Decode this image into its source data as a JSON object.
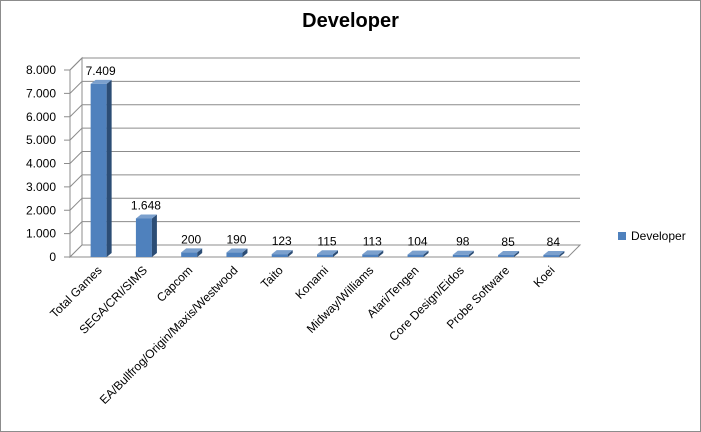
{
  "chart_data": {
    "type": "bar",
    "title": "Developer",
    "categories": [
      "Total Games",
      "SEGA/CRI/SIMS",
      "Capcom",
      "EA/Bullfrog/Origin/Maxis/Westwood",
      "Taito",
      "Konami",
      "Midway/Williams",
      "Atari/Tengen",
      "Core Design/Eidos",
      "Probe Software",
      "Koei"
    ],
    "series": [
      {
        "name": "Developer",
        "values": [
          7409,
          1648,
          200,
          190,
          123,
          115,
          113,
          104,
          98,
          85,
          84
        ]
      }
    ],
    "data_labels": [
      "7.409",
      "1.648",
      "200",
      "190",
      "123",
      "115",
      "113",
      "104",
      "98",
      "85",
      "84"
    ],
    "y_ticks": [
      0,
      1000,
      2000,
      3000,
      4000,
      5000,
      6000,
      7000,
      8000
    ],
    "y_tick_labels": [
      "0",
      "1.000",
      "2.000",
      "3.000",
      "4.000",
      "5.000",
      "6.000",
      "7.000",
      "8.000"
    ],
    "ylim": [
      0,
      8000
    ],
    "grid": true,
    "legend_position": "right",
    "color": "#4f81bd",
    "xlabel": "",
    "ylabel": ""
  }
}
